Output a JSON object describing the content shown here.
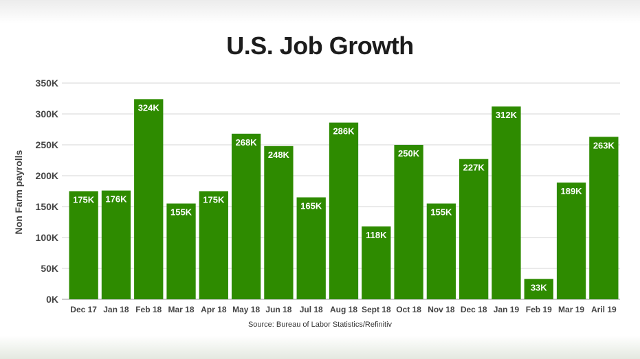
{
  "chart_data": {
    "type": "bar",
    "title": "U.S. Job Growth",
    "ylabel": "Non Farm payrolls",
    "xlabel": "",
    "source": "Source: Bureau of Labor Statistics/Refinitiv",
    "categories": [
      "Dec 17",
      "Jan 18",
      "Feb 18",
      "Mar 18",
      "Apr 18",
      "May 18",
      "Jun 18",
      "Jul 18",
      "Aug 18",
      "Sept 18",
      "Oct 18",
      "Nov 18",
      "Dec 18",
      "Jan 19",
      "Feb 19",
      "Mar 19",
      "Aril 19"
    ],
    "values": [
      175,
      176,
      324,
      155,
      175,
      268,
      248,
      165,
      286,
      118,
      250,
      155,
      227,
      312,
      33,
      189,
      263
    ],
    "data_labels": [
      "175K",
      "176K",
      "324K",
      "155K",
      "175K",
      "268K",
      "248K",
      "165K",
      "286K",
      "118K",
      "250K",
      "155K",
      "227K",
      "312K",
      "33K",
      "189K",
      "263K"
    ],
    "yticks": [
      0,
      50,
      100,
      150,
      200,
      250,
      300,
      350
    ],
    "ytick_labels": [
      "0K",
      "50K",
      "100K",
      "150K",
      "200K",
      "250K",
      "300K",
      "350K"
    ],
    "ylim": [
      0,
      350
    ],
    "grid": true,
    "bar_color": "#2e8b00",
    "label_color": "#ffffff"
  }
}
